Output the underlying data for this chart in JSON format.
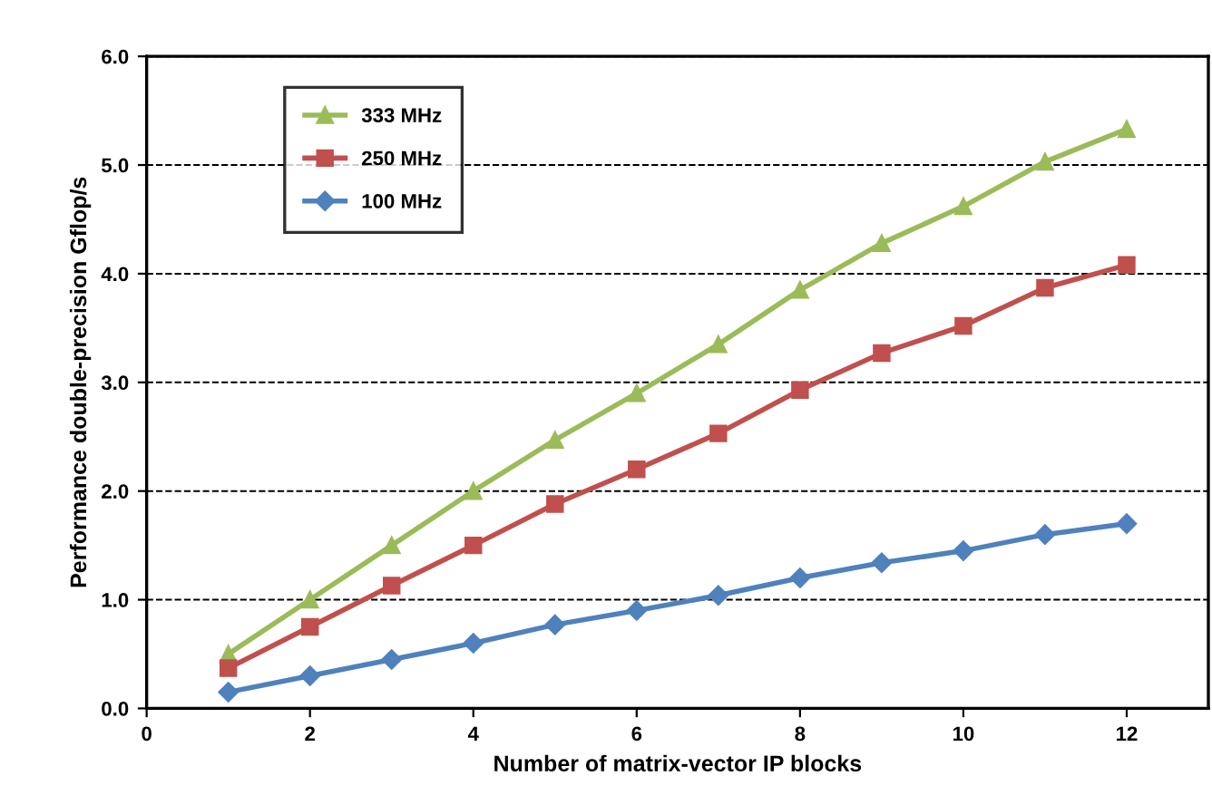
{
  "chart_data": {
    "type": "line",
    "xlabel": "Number of matrix-vector IP blocks",
    "ylabel": "Performance double-precision Gflop/s",
    "x": [
      1,
      2,
      3,
      4,
      5,
      6,
      7,
      8,
      9,
      10,
      11,
      12
    ],
    "series": [
      {
        "name": "333 MHz",
        "color": "#9bbb59",
        "marker": "triangle",
        "values": [
          0.5,
          1.0,
          1.5,
          2.0,
          2.47,
          2.9,
          3.35,
          3.85,
          4.28,
          4.62,
          5.03,
          5.33
        ]
      },
      {
        "name": "250 MHz",
        "color": "#c0504d",
        "marker": "square",
        "values": [
          0.37,
          0.75,
          1.13,
          1.5,
          1.88,
          2.2,
          2.53,
          2.93,
          3.27,
          3.52,
          3.87,
          4.08
        ]
      },
      {
        "name": "100 MHz",
        "color": "#4f81bd",
        "marker": "diamond",
        "values": [
          0.15,
          0.3,
          0.45,
          0.6,
          0.77,
          0.9,
          1.04,
          1.2,
          1.34,
          1.45,
          1.6,
          1.7
        ]
      }
    ],
    "xlim": [
      0,
      13
    ],
    "xticks": [
      0,
      2,
      4,
      6,
      8,
      10,
      12
    ],
    "ylim": [
      0,
      6
    ],
    "yticks": [
      {
        "value": 0,
        "label": "0.0"
      },
      {
        "value": 1,
        "label": "1.0"
      },
      {
        "value": 2,
        "label": "2.0"
      },
      {
        "value": 3,
        "label": "3.0"
      },
      {
        "value": 4,
        "label": "4.0"
      },
      {
        "value": 5,
        "label": "5.0"
      },
      {
        "value": 6,
        "label": "6.0"
      }
    ],
    "grid": "y",
    "legend": "top left",
    "line_style": "solid"
  }
}
